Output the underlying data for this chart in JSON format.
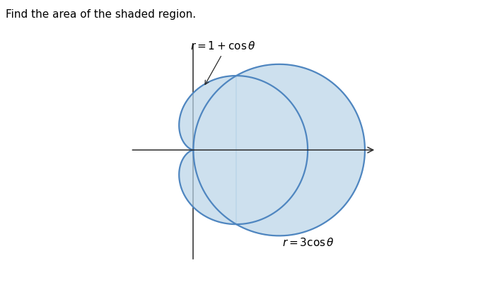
{
  "title": "Find the area of the shaded region.",
  "curve_color": "#4f86c0",
  "shade_color": "#b8d4e8",
  "shade_alpha": 0.7,
  "axis_color": "#2a2a2a",
  "background_color": "#ffffff",
  "figsize": [
    7.07,
    4.2
  ],
  "dpi": 100,
  "linewidth": 1.6,
  "annotation_fontsize": 11
}
